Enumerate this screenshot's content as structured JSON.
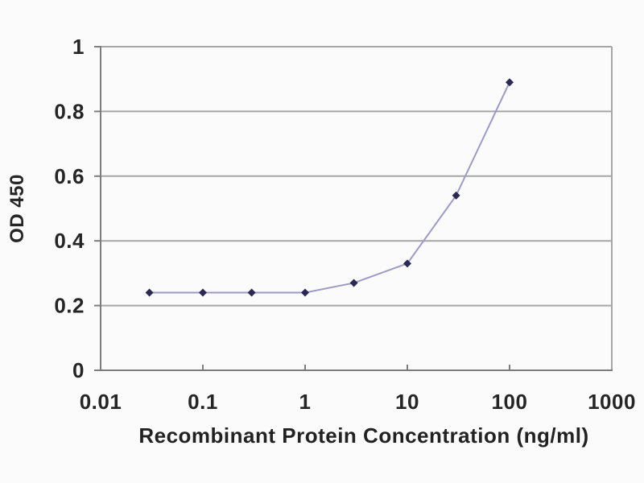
{
  "chart_data": {
    "type": "line",
    "title": "",
    "xlabel": "Recombinant Protein Concentration (ng/ml)",
    "ylabel": "OD 450",
    "x_scale": "log",
    "xlim": [
      0.01,
      1000
    ],
    "ylim": [
      0,
      1
    ],
    "x_ticks": [
      0.01,
      0.1,
      1,
      10,
      100,
      1000
    ],
    "x_tick_labels": [
      "0.01",
      "0.1",
      "1",
      "10",
      "100",
      "1000"
    ],
    "y_ticks": [
      0,
      0.2,
      0.4,
      0.6,
      0.8,
      1
    ],
    "y_tick_labels": [
      "0",
      "0.2",
      "0.4",
      "0.6",
      "0.8",
      "1"
    ],
    "grid": "horizontal",
    "legend_position": "none",
    "series": [
      {
        "name": "OD 450",
        "x": [
          0.03,
          0.1,
          0.3,
          1,
          3,
          10,
          30,
          100
        ],
        "y": [
          0.24,
          0.24,
          0.24,
          0.24,
          0.27,
          0.33,
          0.54,
          0.89
        ],
        "marker": "diamond"
      }
    ]
  },
  "colors": {
    "background": "#fbfbfb",
    "axis_line": "#7d7d7d",
    "gridline": "#a6a6a6",
    "tick_text": "#252525",
    "series_line": "#9b9ac9",
    "marker": "#2a2952"
  }
}
